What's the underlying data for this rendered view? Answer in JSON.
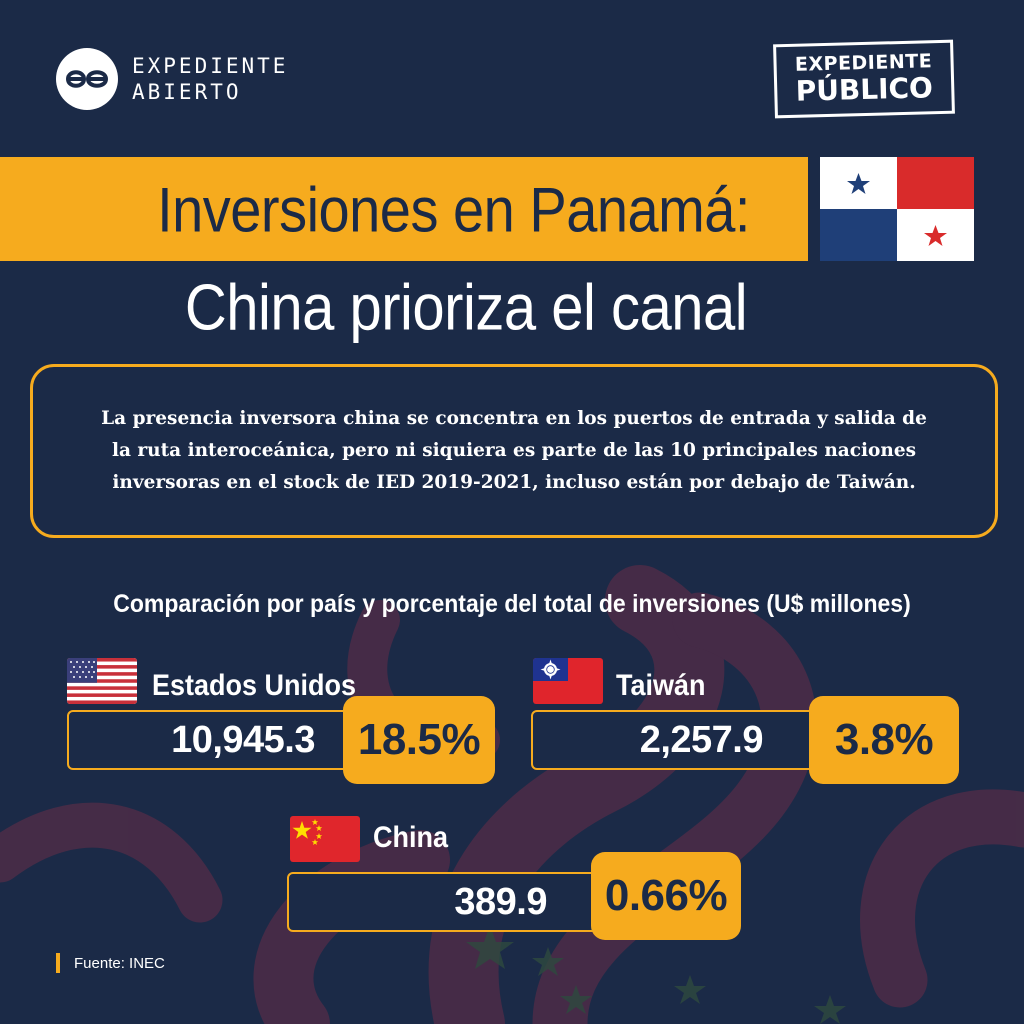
{
  "header": {
    "logo_left": {
      "line1": "EXPEDIENTE",
      "line2": "ABIERTO"
    },
    "logo_right": {
      "line1": "EXPEDIENTE",
      "line2": "PÚBLICO"
    }
  },
  "title": {
    "line1": "Inversiones en Panamá:",
    "line2": "China prioriza el canal"
  },
  "description": "La presencia inversora china se concentra en los puertos de entrada y salida de la ruta interoceánica, pero ni siquiera es parte de las 10 principales naciones inversoras en el stock de IED 2019-2021, incluso están por debajo de Taiwán.",
  "comparison": {
    "title": "Comparación por país y porcentaje del total de inversiones (U$ millones)",
    "countries": [
      {
        "name": "Estados Unidos",
        "value": "10,945.3",
        "percent": "18.5%",
        "flag": "usa-flag-icon"
      },
      {
        "name": "Taiwán",
        "value": "2,257.9",
        "percent": "3.8%",
        "flag": "taiwan-flag-icon"
      },
      {
        "name": "China",
        "value": "389.9",
        "percent": "0.66%",
        "flag": "china-flag-icon"
      }
    ]
  },
  "source": "Fuente: INEC",
  "colors": {
    "background": "#1b2a47",
    "accent": "#f6ab1e",
    "decor": "#5b2d45"
  }
}
